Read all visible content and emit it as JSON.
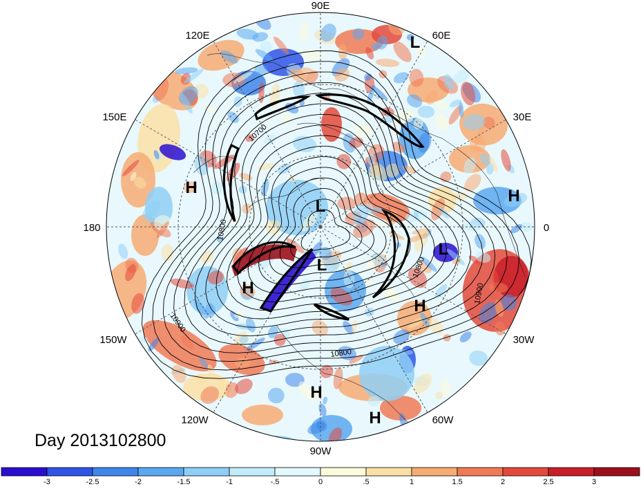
{
  "title": "Day 2013102800",
  "longitude_labels": [
    {
      "key": "lon-90e",
      "text": "90E"
    },
    {
      "key": "lon-60e",
      "text": "60E"
    },
    {
      "key": "lon-30e",
      "text": "30E"
    },
    {
      "key": "lon-0",
      "text": "0"
    },
    {
      "key": "lon-30w",
      "text": "30W"
    },
    {
      "key": "lon-60w",
      "text": "60W"
    },
    {
      "key": "lon-90w",
      "text": "90W"
    },
    {
      "key": "lon-120w",
      "text": "120W"
    },
    {
      "key": "lon-150w",
      "text": "150W"
    },
    {
      "key": "lon-180",
      "text": "180"
    },
    {
      "key": "lon-150e",
      "text": "150E"
    },
    {
      "key": "lon-120e",
      "text": "120E"
    }
  ],
  "pressure_centers": [
    {
      "key": "low-60e",
      "text": "L"
    },
    {
      "key": "high-0",
      "text": "H"
    },
    {
      "key": "low-atlantic",
      "text": "L"
    },
    {
      "key": "high-atlantic",
      "text": "H"
    },
    {
      "key": "high-pacific",
      "text": "H"
    },
    {
      "key": "high-bering",
      "text": "H"
    },
    {
      "key": "low-pole",
      "text": "L"
    },
    {
      "key": "low-canada",
      "text": "L"
    },
    {
      "key": "high-gulf",
      "text": "H"
    },
    {
      "key": "high-southamerica",
      "text": "H"
    }
  ],
  "contour_labels": [
    {
      "key": "c-10700",
      "text": "10700"
    },
    {
      "key": "c-10800-a",
      "text": "10800"
    },
    {
      "key": "c-10800-b",
      "text": "10800"
    },
    {
      "key": "c-10800-c",
      "text": "10800"
    },
    {
      "key": "c-10900-a",
      "text": "10900"
    },
    {
      "key": "c-10900-b",
      "text": "10900"
    }
  ],
  "colorbar": {
    "colors": [
      "#2a0fd0",
      "#2f55e6",
      "#3f86ea",
      "#5aa8f0",
      "#8fcff6",
      "#c2ecfb",
      "#e4f8fd",
      "#fdfbdc",
      "#fbe0a6",
      "#f7ac73",
      "#f07a56",
      "#e44a3b",
      "#c81f2a",
      "#9c0f1c"
    ],
    "tick_labels": [
      "-3",
      "-2.5",
      "-2",
      "-1.5",
      "-1",
      "-.5",
      "0",
      ".5",
      "1",
      "1.5",
      "2",
      "2.5",
      "3"
    ]
  }
}
